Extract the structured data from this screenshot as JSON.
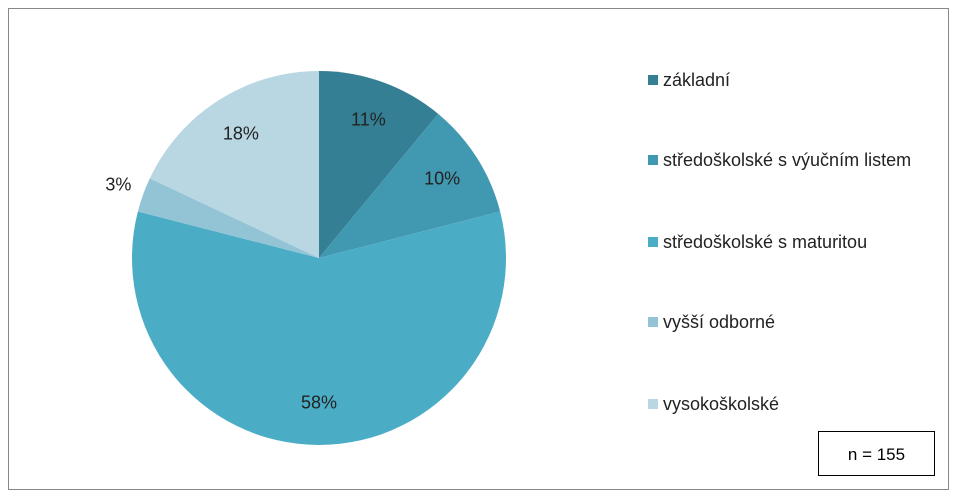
{
  "chart_data": {
    "type": "pie",
    "categories": [
      "základní",
      "středoškolské s výučním listem",
      "středoškolské s maturitou",
      "vyšší odborné",
      "vysokoškolské"
    ],
    "values": [
      11,
      10,
      58,
      3,
      18
    ],
    "value_labels": [
      "11%",
      "10%",
      "58%",
      "3%",
      "18%"
    ],
    "colors": [
      "#357f94",
      "#4198b1",
      "#4bacc6",
      "#93c4d5",
      "#b9d7e3"
    ],
    "annotation": "n = 155",
    "legend": "right"
  }
}
